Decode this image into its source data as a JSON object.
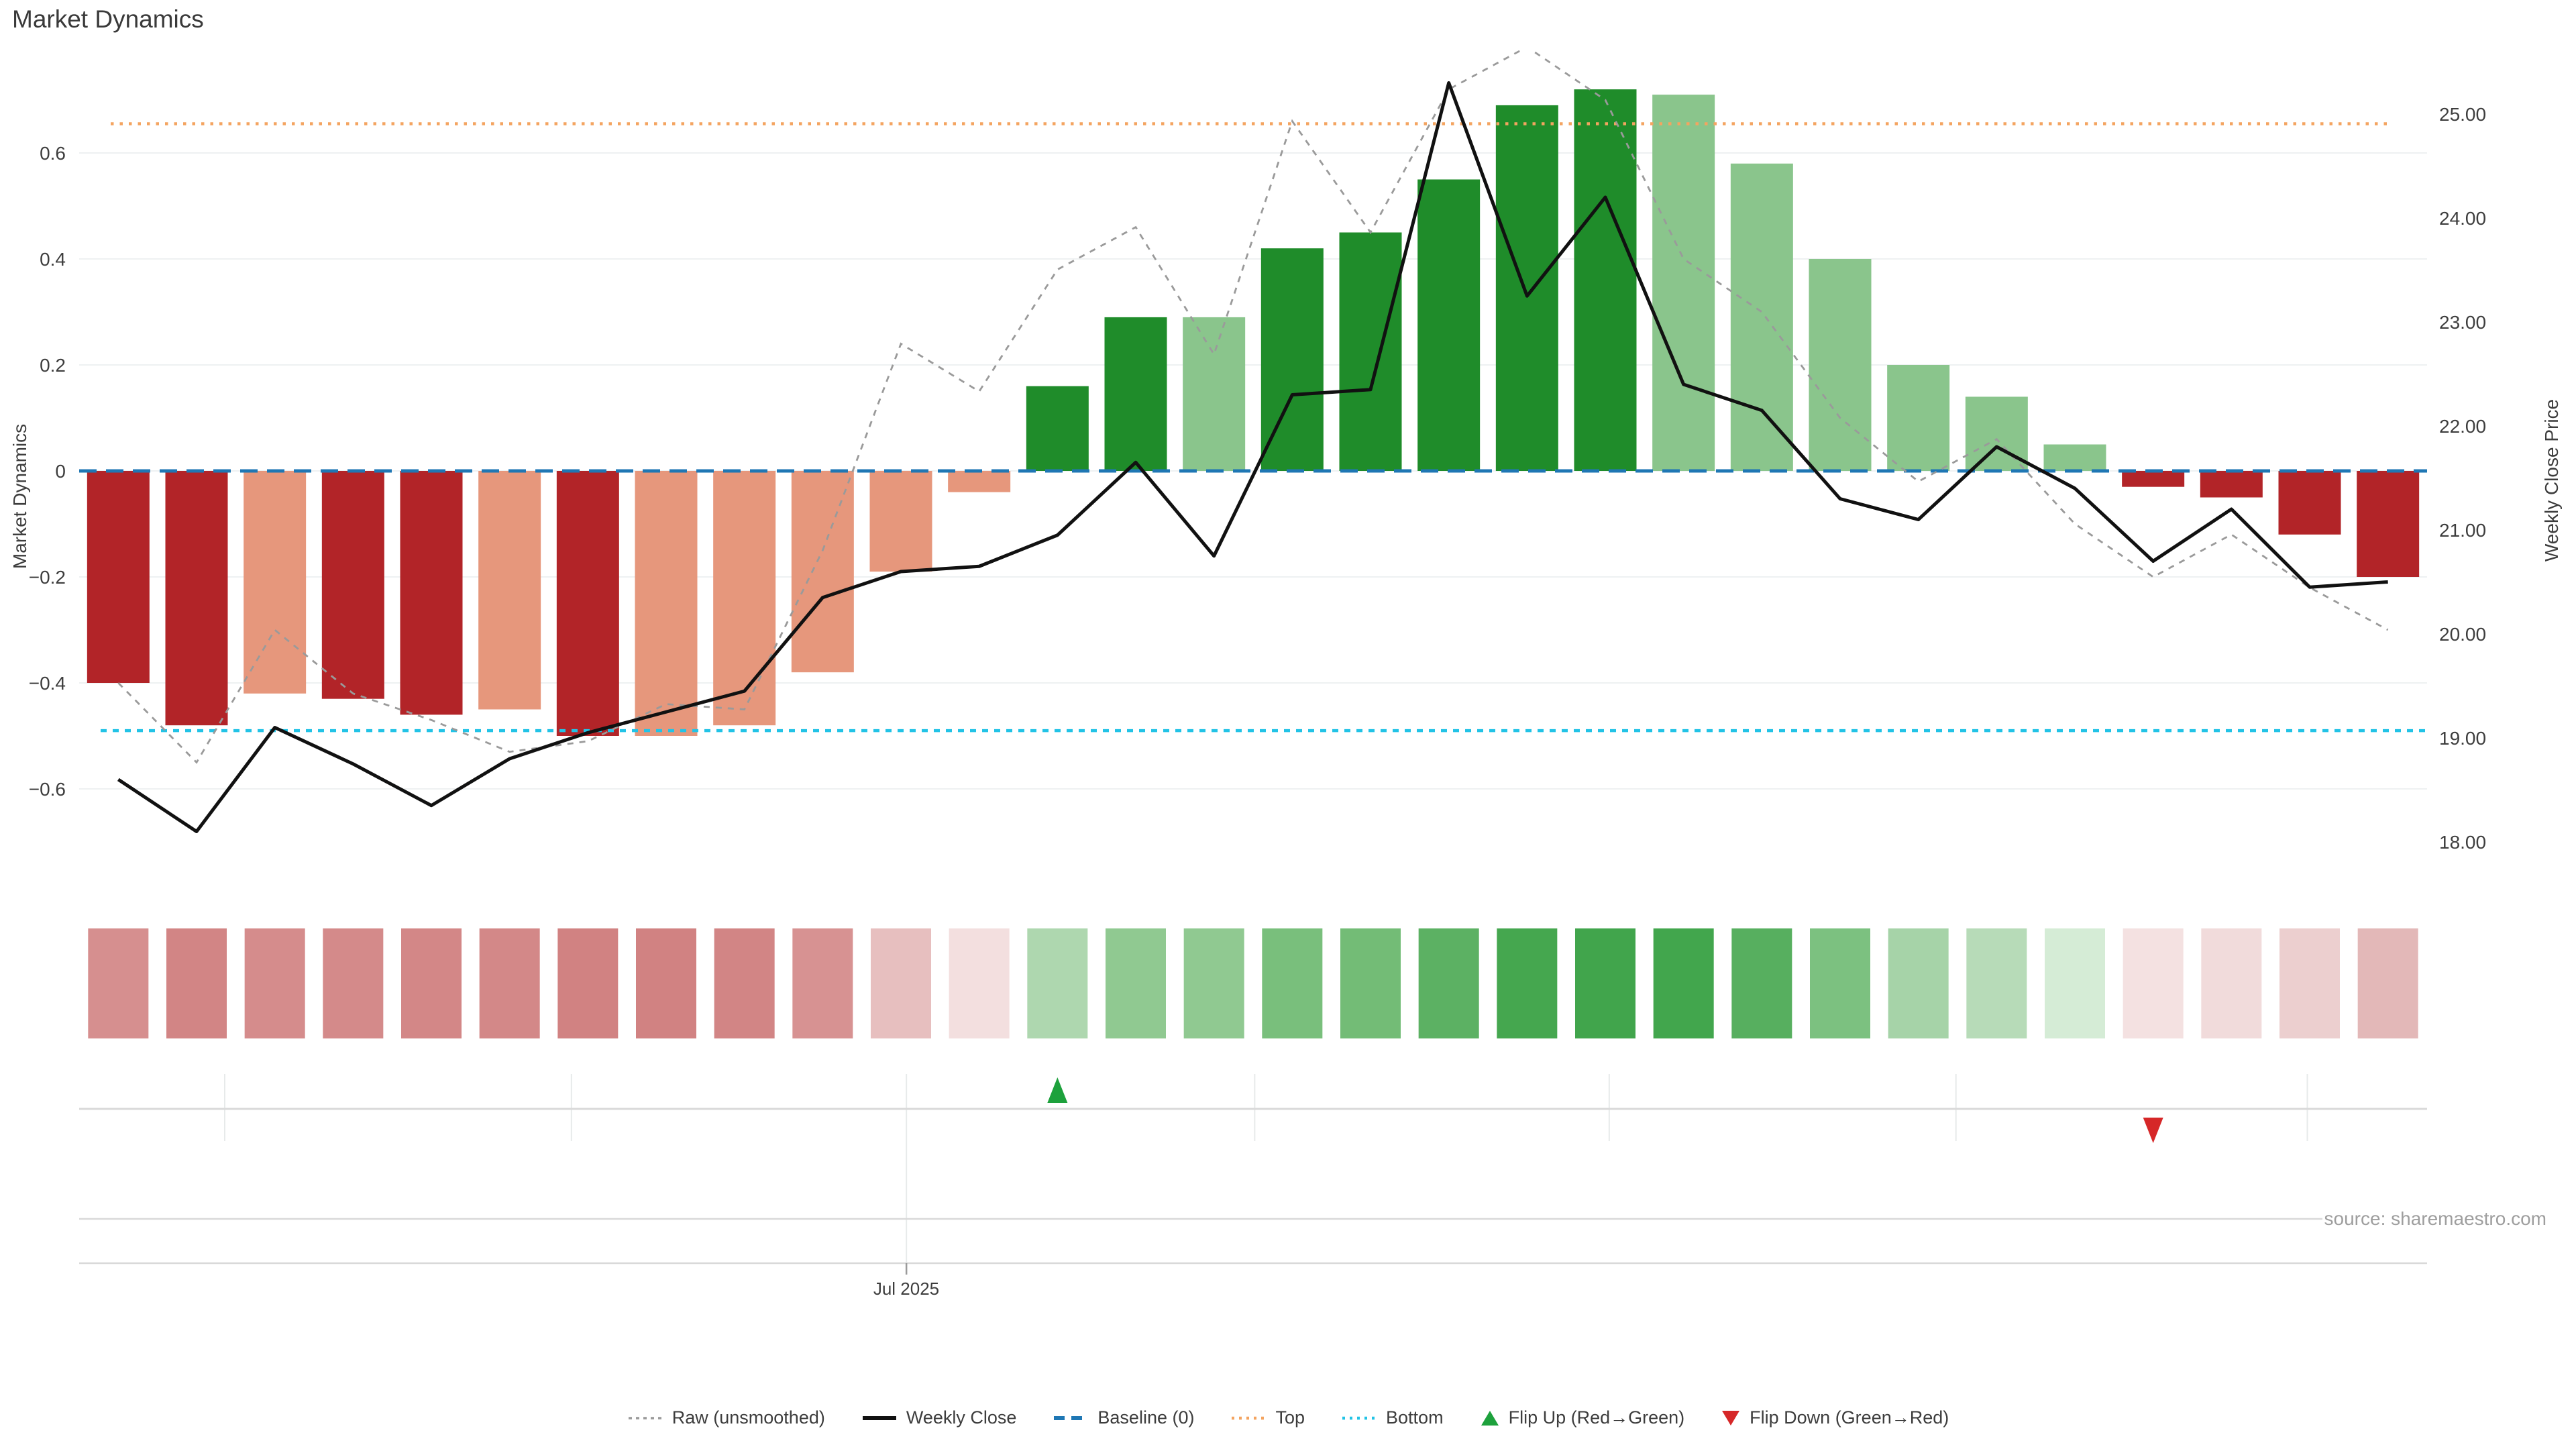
{
  "title": "Market Dynamics",
  "source_note": "source: sharemaestro.com",
  "left_axis": {
    "label": "Market Dynamics",
    "tick_labels": [
      "0.6",
      "0.4",
      "0.2",
      "0",
      "−0.2",
      "−0.4",
      "−0.6"
    ],
    "tick_values": [
      0.6,
      0.4,
      0.2,
      0,
      -0.2,
      -0.4,
      -0.6
    ]
  },
  "right_axis": {
    "label": "Weekly Close Price",
    "tick_labels": [
      "25.00",
      "24.00",
      "23.00",
      "22.00",
      "21.00",
      "20.00",
      "19.00",
      "18.00"
    ],
    "tick_values": [
      25,
      24,
      23,
      22,
      21,
      20,
      19,
      18
    ]
  },
  "x_axis": {
    "visible_tick": "Jul 2025",
    "jul_gridline_slot": 10.57,
    "month_gridline_slots": [
      1.86,
      6.29,
      10.57,
      15.02,
      19.55,
      23.98,
      28.47
    ]
  },
  "colors": {
    "bar_dark_red": "#b22428",
    "bar_light_red": "#e6977c",
    "bar_dark_green": "#1f8c2a",
    "bar_light_green": "#8ac58c",
    "weekly_close": "#111111",
    "raw": "#9a9a9a",
    "baseline": "#1f77b4",
    "top": "#f4a460",
    "bottom": "#22c3e6",
    "flip_up": "#1da13c",
    "flip_down": "#d62728",
    "gridline": "#eef1f2",
    "axis_line": "#d9d9d9",
    "tick_text": "#3d3d3d"
  },
  "legend": {
    "items": [
      {
        "label": "Raw (unsmoothed)",
        "type": "raw"
      },
      {
        "label": "Weekly Close",
        "type": "weekly"
      },
      {
        "label": "Baseline (0)",
        "type": "baseline"
      },
      {
        "label": "Top",
        "type": "top"
      },
      {
        "label": "Bottom",
        "type": "bottom"
      },
      {
        "label": "Flip Up (Red→Green)",
        "type": "flip_up"
      },
      {
        "label": "Flip Down (Green→Red)",
        "type": "flip_down"
      }
    ]
  },
  "chart_data": {
    "type": "bar+line combo, weekly time axis, 30 weeks, dual y-axes",
    "title": "Market Dynamics",
    "ylabel_left": "Market Dynamics",
    "ylabel_right": "Weekly Close Price",
    "ylim_left": [
      -0.77,
      0.79
    ],
    "right_axis_range": [
      18,
      25
    ],
    "n_points": 30,
    "bars": {
      "name": "Market Dynamics",
      "values": [
        -0.4,
        -0.48,
        -0.42,
        -0.43,
        -0.46,
        -0.45,
        -0.5,
        -0.5,
        -0.48,
        -0.38,
        -0.19,
        -0.04,
        0.16,
        0.29,
        0.29,
        0.42,
        0.45,
        0.55,
        0.69,
        0.72,
        0.71,
        0.58,
        0.4,
        0.2,
        0.14,
        0.05,
        -0.03,
        -0.05,
        -0.12,
        -0.2
      ],
      "shades": [
        "dark",
        "dark",
        "light",
        "dark",
        "dark",
        "light",
        "dark",
        "light",
        "light",
        "light",
        "light",
        "light",
        "dark",
        "dark",
        "light",
        "dark",
        "dark",
        "dark",
        "dark",
        "dark",
        "light",
        "light",
        "light",
        "light",
        "light",
        "light",
        "dark",
        "dark",
        "dark",
        "dark"
      ]
    },
    "series": [
      {
        "name": "Weekly Close",
        "axis": "right",
        "values": [
          18.6,
          18.1,
          19.1,
          18.75,
          18.35,
          18.8,
          19.05,
          19.25,
          19.45,
          20.35,
          20.6,
          20.65,
          20.95,
          21.65,
          20.75,
          22.3,
          22.35,
          25.3,
          23.25,
          24.2,
          22.4,
          22.15,
          21.3,
          21.1,
          21.8,
          21.4,
          20.7,
          21.2,
          20.45,
          20.5
        ]
      },
      {
        "name": "Raw (unsmoothed)",
        "axis": "left",
        "values": [
          -0.4,
          -0.55,
          -0.3,
          -0.42,
          -0.47,
          -0.53,
          -0.51,
          -0.44,
          -0.45,
          -0.15,
          0.24,
          0.15,
          0.38,
          0.46,
          0.22,
          0.66,
          0.45,
          0.72,
          0.8,
          0.7,
          0.4,
          0.3,
          0.1,
          -0.02,
          0.06,
          -0.1,
          -0.2,
          -0.12,
          -0.22,
          -0.3
        ]
      }
    ],
    "reference_lines": {
      "baseline": 0,
      "top": 0.655,
      "bottom": -0.49
    },
    "flip_up_index": 12,
    "flip_down_index": 26,
    "strip_colors": [
      "#d68f8f",
      "#d28585",
      "#d58c8c",
      "#d48a8a",
      "#d38787",
      "#d38888",
      "#d18282",
      "#d18282",
      "#d28585",
      "#d79292",
      "#e7bfbf",
      "#f3dfdf",
      "#aed7af",
      "#90c991",
      "#90c991",
      "#79bf7c",
      "#73bc76",
      "#5cb163",
      "#45a74f",
      "#41a54c",
      "#42a64d",
      "#57af5f",
      "#7cc180",
      "#a6d3a8",
      "#b7dbb8",
      "#d5ecd6",
      "#f4e1e1",
      "#f1dbdb",
      "#eccfcf",
      "#e3b8b8"
    ],
    "grid": "horizontal gridlines at left-axis ticks",
    "legend_position": "bottom center"
  }
}
